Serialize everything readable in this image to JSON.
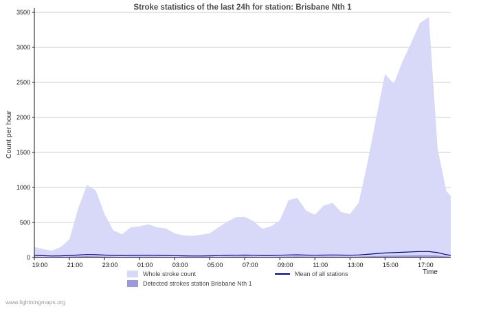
{
  "chart_data": {
    "type": "area",
    "title": "Stroke statistics of the last 24h for station: Brisbane Nth 1",
    "ylabel": "Count per hour",
    "xlabel": "Time",
    "ylim": [
      0,
      3500
    ],
    "yticks": [
      0,
      500,
      1000,
      1500,
      2000,
      2500,
      3000,
      3500
    ],
    "xtick_hours": [
      0,
      2,
      4,
      6,
      8,
      10,
      12,
      14,
      16,
      18,
      20,
      22
    ],
    "xtick_labels": [
      "19:00",
      "21:00",
      "23:00",
      "01:00",
      "03:00",
      "05:00",
      "07:00",
      "09:00",
      "11:00",
      "13:00",
      "15:00",
      "17:00"
    ],
    "grid": true,
    "legend_position": "bottom",
    "x": [
      0,
      0.5,
      1,
      1.5,
      2,
      2.5,
      3,
      3.5,
      4,
      4.5,
      5,
      5.5,
      6,
      6.5,
      7,
      7.5,
      8,
      8.5,
      9,
      9.5,
      10,
      10.5,
      11,
      11.5,
      12,
      12.5,
      13,
      13.5,
      14,
      14.5,
      15,
      15.5,
      16,
      16.5,
      17,
      17.5,
      18,
      18.5,
      19,
      19.5,
      20,
      20.5,
      21,
      21.5,
      22,
      22.5,
      23,
      23.5,
      23.75
    ],
    "series": [
      {
        "name": "Whole stroke count",
        "type": "area",
        "color": "#d8d8f8",
        "values": [
          150,
          120,
          95,
          150,
          260,
          700,
          1035,
          960,
          620,
          390,
          330,
          430,
          445,
          475,
          430,
          415,
          345,
          315,
          310,
          325,
          345,
          430,
          510,
          575,
          580,
          520,
          410,
          445,
          530,
          820,
          850,
          670,
          610,
          740,
          780,
          650,
          620,
          780,
          1350,
          2000,
          2620,
          2480,
          2800,
          3070,
          3350,
          3430,
          1550,
          950,
          880
        ]
      },
      {
        "name": "Detected strokes station Brisbane Nth 1",
        "type": "area",
        "color": "#9a9ade",
        "values": [
          12,
          10,
          8,
          10,
          14,
          18,
          20,
          18,
          14,
          12,
          10,
          12,
          12,
          12,
          12,
          10,
          10,
          8,
          8,
          8,
          10,
          10,
          12,
          14,
          14,
          12,
          10,
          10,
          12,
          14,
          16,
          14,
          12,
          14,
          14,
          12,
          12,
          14,
          18,
          22,
          26,
          28,
          30,
          32,
          34,
          34,
          28,
          16,
          12
        ]
      },
      {
        "name": "Mean of all stations",
        "type": "line",
        "color": "#000099",
        "values": [
          30,
          25,
          22,
          24,
          28,
          35,
          42,
          40,
          34,
          30,
          28,
          30,
          30,
          32,
          30,
          28,
          26,
          24,
          22,
          22,
          24,
          26,
          30,
          32,
          34,
          32,
          28,
          28,
          32,
          36,
          38,
          34,
          32,
          34,
          36,
          34,
          32,
          36,
          45,
          55,
          65,
          70,
          75,
          80,
          85,
          85,
          70,
          40,
          30
        ]
      }
    ]
  },
  "footer": {
    "link": "www.lightningmaps.org"
  }
}
